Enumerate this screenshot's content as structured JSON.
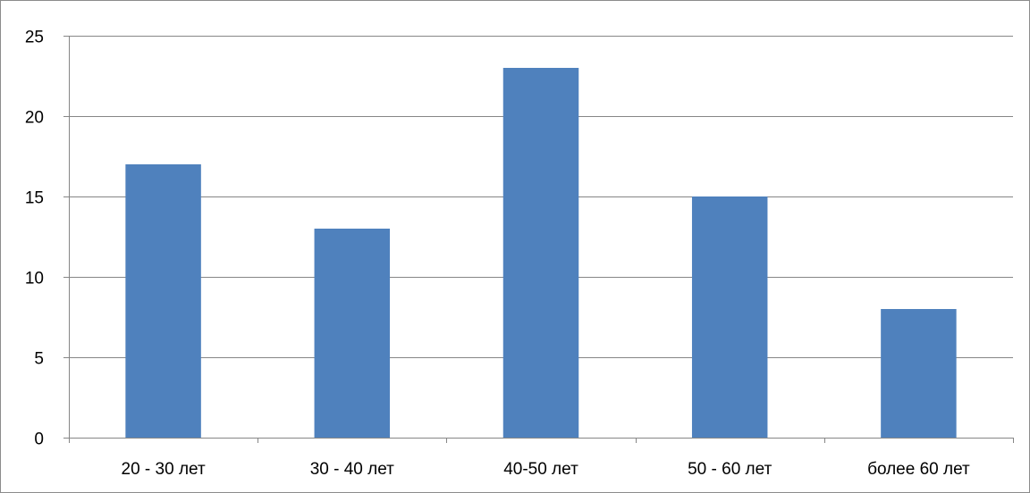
{
  "chart_data": {
    "type": "bar",
    "categories": [
      "20 - 30 лет",
      "30 - 40 лет",
      "40-50 лет",
      "50 - 60 лет",
      "более 60 лет"
    ],
    "values": [
      17,
      13,
      23,
      15,
      8
    ],
    "ylim": [
      0,
      25
    ],
    "yticks": [
      "0",
      "5",
      "10",
      "15",
      "20",
      "25"
    ],
    "grid": true,
    "legend": "none",
    "colors": {
      "bar": "#4f81bd",
      "grid": "#868686",
      "axis": "#868686"
    }
  }
}
